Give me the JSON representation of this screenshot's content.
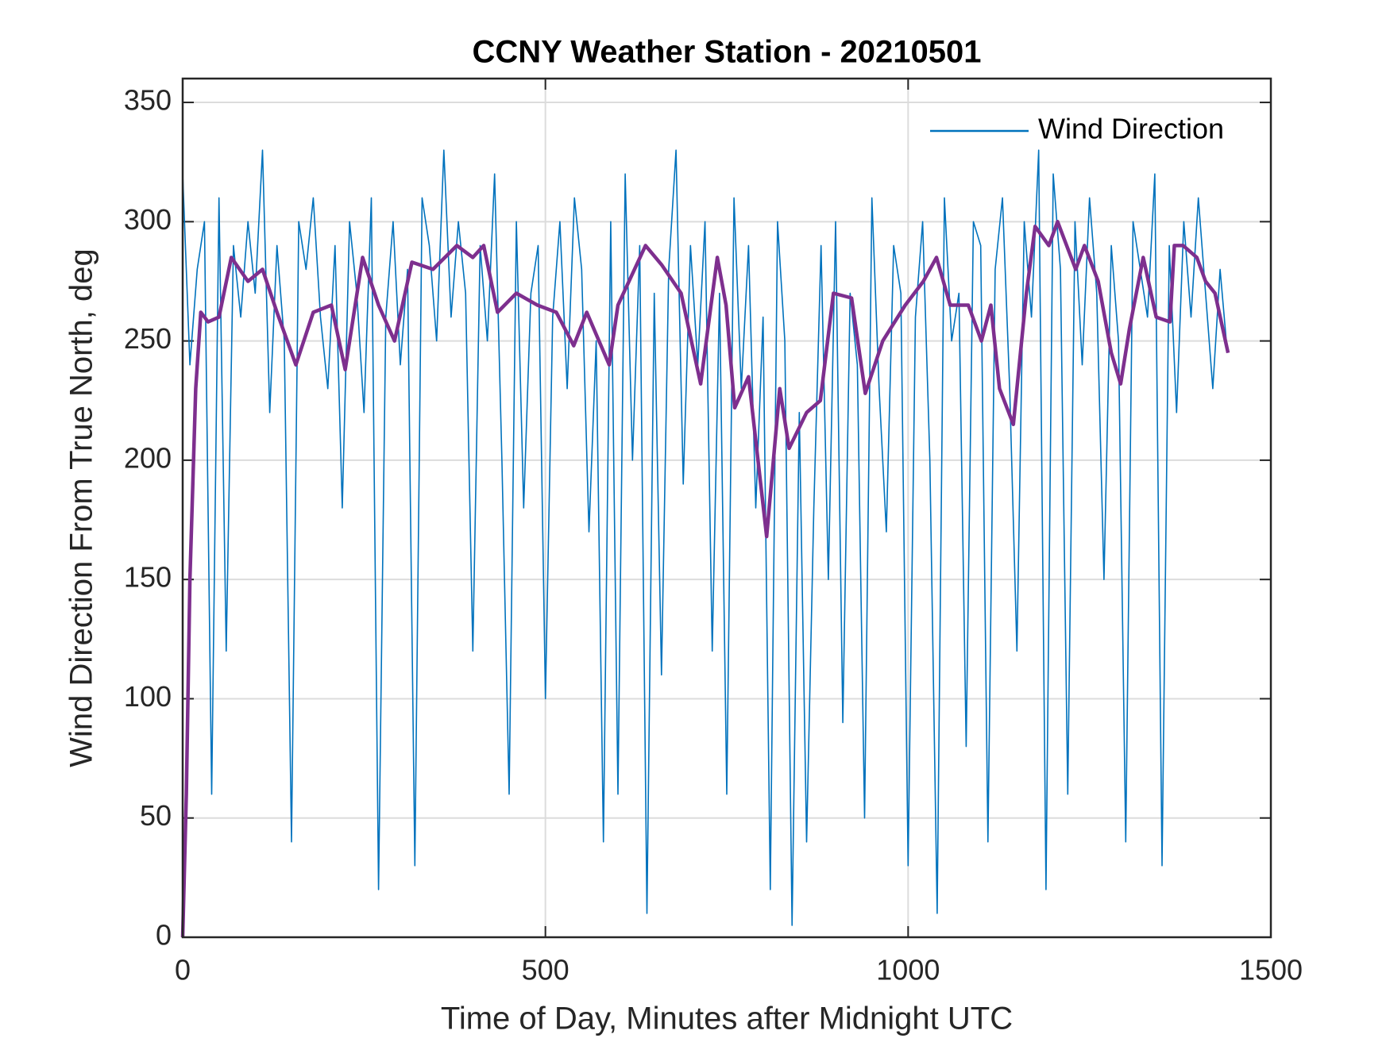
{
  "chart_data": {
    "type": "line",
    "title": "CCNY Weather Station - 20210501",
    "xlabel": "Time of Day, Minutes after Midnight UTC",
    "ylabel": "Wind Direction From True North, deg",
    "xlim": [
      0,
      1500
    ],
    "xticks": [
      0,
      500,
      1000,
      1500
    ],
    "ylim": [
      0,
      360
    ],
    "yticks": [
      0,
      50,
      100,
      150,
      200,
      250,
      300,
      350
    ],
    "grid": true,
    "legend": "top-right",
    "series": [
      {
        "name": "Wind Direction",
        "color": "#0072bd",
        "x": [
          0,
          10,
          20,
          30,
          40,
          50,
          60,
          70,
          80,
          90,
          100,
          110,
          120,
          130,
          140,
          150,
          160,
          170,
          180,
          190,
          200,
          210,
          220,
          230,
          240,
          250,
          260,
          270,
          280,
          290,
          300,
          310,
          320,
          330,
          340,
          350,
          360,
          370,
          380,
          390,
          400,
          410,
          420,
          430,
          440,
          450,
          460,
          470,
          480,
          490,
          500,
          510,
          520,
          530,
          540,
          550,
          560,
          570,
          580,
          590,
          600,
          610,
          620,
          630,
          640,
          650,
          660,
          670,
          680,
          690,
          700,
          710,
          720,
          730,
          740,
          750,
          760,
          770,
          780,
          790,
          800,
          810,
          820,
          830,
          840,
          850,
          860,
          870,
          880,
          890,
          900,
          910,
          920,
          930,
          940,
          950,
          960,
          970,
          980,
          990,
          1000,
          1010,
          1020,
          1030,
          1040,
          1050,
          1060,
          1070,
          1080,
          1090,
          1100,
          1110,
          1120,
          1130,
          1140,
          1150,
          1160,
          1170,
          1180,
          1190,
          1200,
          1210,
          1220,
          1230,
          1240,
          1250,
          1260,
          1270,
          1280,
          1290,
          1300,
          1310,
          1320,
          1330,
          1340,
          1350,
          1360,
          1370,
          1380,
          1390,
          1400,
          1410,
          1420,
          1430,
          1440
        ],
        "values": [
          320,
          240,
          280,
          300,
          60,
          310,
          120,
          290,
          260,
          300,
          270,
          330,
          220,
          290,
          250,
          40,
          300,
          280,
          310,
          260,
          230,
          290,
          180,
          300,
          270,
          220,
          310,
          20,
          260,
          300,
          240,
          280,
          30,
          310,
          290,
          250,
          330,
          260,
          300,
          270,
          120,
          290,
          250,
          320,
          200,
          60,
          300,
          180,
          270,
          290,
          100,
          260,
          300,
          230,
          310,
          280,
          170,
          250,
          40,
          300,
          60,
          320,
          200,
          290,
          10,
          270,
          110,
          280,
          330,
          190,
          290,
          240,
          300,
          120,
          270,
          60,
          310,
          230,
          290,
          180,
          260,
          20,
          300,
          250,
          5,
          220,
          40,
          180,
          290,
          150,
          300,
          90,
          270,
          240,
          50,
          310,
          230,
          170,
          290,
          270,
          30,
          260,
          300,
          200,
          10,
          310,
          250,
          270,
          80,
          300,
          290,
          40,
          280,
          310,
          230,
          120,
          300,
          260,
          330,
          20,
          320,
          280,
          60,
          300,
          240,
          310,
          270,
          150,
          290,
          250,
          40,
          300,
          280,
          260,
          320,
          30,
          290,
          220,
          300,
          260,
          310,
          270,
          230,
          280,
          245
        ]
      },
      {
        "color": "#7e2f8e",
        "x": [
          0,
          5,
          10,
          18,
          25,
          35,
          50,
          67,
          90,
          110,
          130,
          156,
          180,
          205,
          224,
          248,
          270,
          292,
          316,
          345,
          378,
          400,
          415,
          434,
          460,
          489,
          515,
          539,
          557,
          588,
          600,
          638,
          660,
          687,
          714,
          737,
          749,
          761,
          780,
          805,
          823,
          836,
          860,
          879,
          897,
          922,
          941,
          965,
          996,
          1021,
          1039,
          1058,
          1083,
          1101,
          1114,
          1126,
          1145,
          1163,
          1175,
          1194,
          1206,
          1231,
          1243,
          1262,
          1280,
          1293,
          1305,
          1324,
          1342,
          1361,
          1367,
          1379,
          1398,
          1410,
          1423,
          1441
        ],
        "values": [
          0,
          60,
          150,
          230,
          262,
          258,
          260,
          285,
          275,
          280,
          262,
          240,
          262,
          265,
          238,
          285,
          265,
          250,
          283,
          280,
          290,
          285,
          290,
          262,
          270,
          265,
          262,
          248,
          262,
          240,
          265,
          290,
          282,
          270,
          232,
          285,
          265,
          222,
          235,
          168,
          230,
          205,
          220,
          225,
          270,
          268,
          228,
          250,
          265,
          275,
          285,
          265,
          265,
          250,
          265,
          230,
          215,
          270,
          298,
          290,
          300,
          280,
          290,
          275,
          245,
          232,
          255,
          285,
          260,
          258,
          290,
          290,
          285,
          275,
          270,
          245
        ]
      }
    ]
  }
}
